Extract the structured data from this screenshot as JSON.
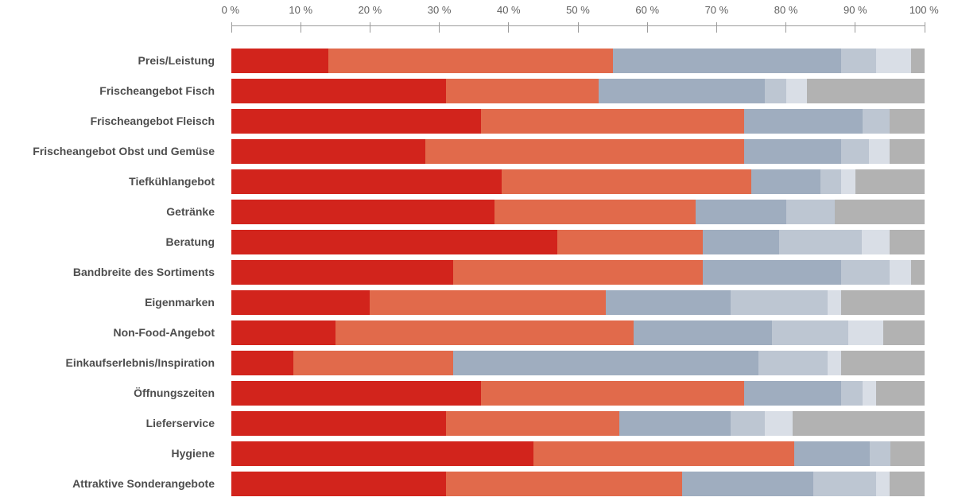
{
  "chart_data": {
    "type": "bar",
    "stacked": true,
    "orientation": "horizontal",
    "title": "",
    "xlabel": "",
    "ylabel": "",
    "unit": "%",
    "grid": false,
    "legend_position": "none",
    "axis": {
      "min": 0,
      "max": 100,
      "tick_step": 10,
      "tick_labels": [
        "0 %",
        "10 %",
        "20 %",
        "30 %",
        "40 %",
        "50 %",
        "60 %",
        "70 %",
        "80 %",
        "90 %",
        "100 %"
      ]
    },
    "categories": [
      "Preis/Leistung",
      "Frischeangebot Fisch",
      "Frischeangebot Fleisch",
      "Frischeangebot Obst und Gemüse",
      "Tiefkühlangebot",
      "Getränke",
      "Beratung",
      "Bandbreite des Sortiments",
      "Eigenmarken",
      "Non-Food-Angebot",
      "Einkaufserlebnis/Inspiration",
      "Öffnungszeiten",
      "Lieferservice",
      "Hygiene",
      "Attraktive Sonderangebote"
    ],
    "series": [
      {
        "name": "dark-red",
        "color": "#d2241c",
        "values": [
          14,
          31,
          36,
          28,
          39,
          38,
          47,
          32,
          20,
          15,
          9,
          36,
          31,
          44,
          31
        ]
      },
      {
        "name": "orange",
        "color": "#e16a4b",
        "values": [
          41,
          22,
          38,
          46,
          36,
          29,
          21,
          36,
          34,
          43,
          23,
          38,
          25,
          38,
          34
        ]
      },
      {
        "name": "blue-gray",
        "color": "#9fadbf",
        "values": [
          33,
          24,
          17,
          14,
          10,
          13,
          11,
          20,
          18,
          20,
          44,
          14,
          16,
          11,
          19
        ]
      },
      {
        "name": "light-blue-gray",
        "color": "#bdc6d2",
        "values": [
          5,
          3,
          4,
          4,
          3,
          7,
          12,
          7,
          14,
          11,
          10,
          3,
          5,
          3,
          9
        ]
      },
      {
        "name": "pale-blue-gray",
        "color": "#d9dee6",
        "values": [
          5,
          3,
          0,
          3,
          2,
          0,
          4,
          3,
          2,
          5,
          2,
          2,
          4,
          0,
          2
        ]
      },
      {
        "name": "gray",
        "color": "#b2b2b2",
        "values": [
          2,
          17,
          5,
          5,
          10,
          13,
          5,
          2,
          12,
          6,
          12,
          7,
          19,
          5,
          5
        ]
      }
    ],
    "colors": {
      "axis_line": "#9b9b9b",
      "tick_text": "#5f5f5f",
      "category_text": "#4d4d4d",
      "background": "#ffffff"
    }
  }
}
